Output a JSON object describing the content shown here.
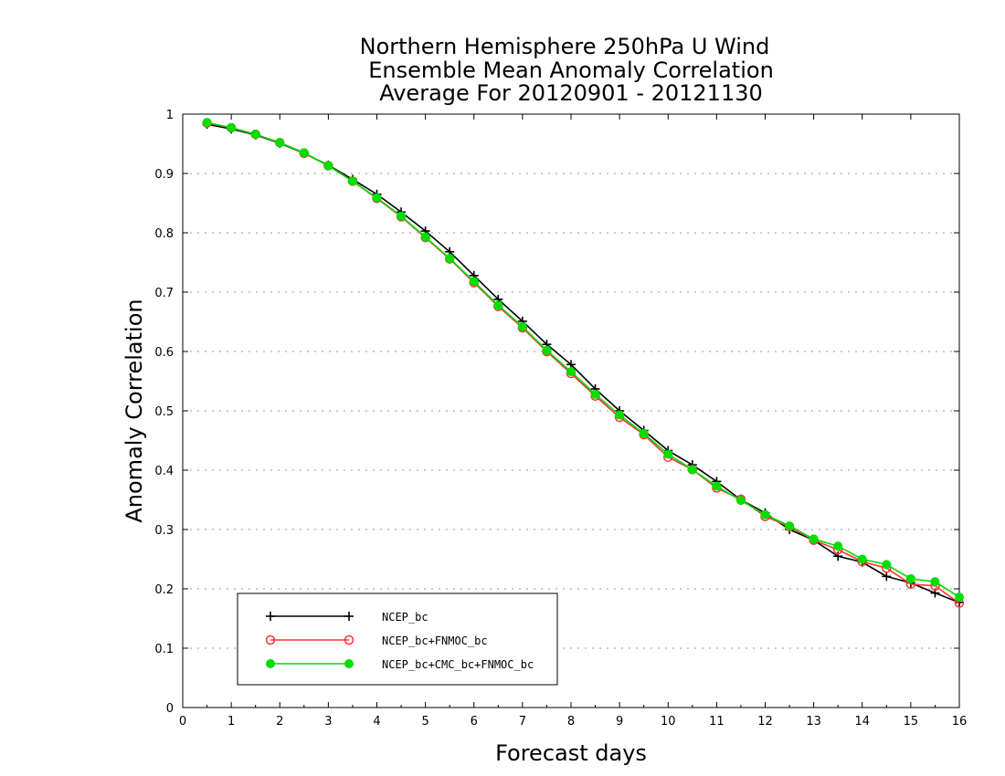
{
  "chart_data": {
    "type": "line",
    "title": [
      "Northern Hemisphere 250hPa U Wind",
      "Ensemble Mean Anomaly Correlation",
      "Average For 20120901 - 20121130"
    ],
    "xlabel": "Forecast days",
    "ylabel": "Anomaly Correlation",
    "xlim": [
      0,
      16
    ],
    "ylim": [
      0,
      1
    ],
    "x_ticks": [
      "0",
      "1",
      "2",
      "3",
      "4",
      "5",
      "6",
      "7",
      "8",
      "9",
      "10",
      "11",
      "12",
      "13",
      "14",
      "15",
      "16"
    ],
    "y_ticks": [
      "0",
      "0.1",
      "0.2",
      "0.3",
      "0.4",
      "0.5",
      "0.6",
      "0.7",
      "0.8",
      "0.9",
      "1"
    ],
    "grid": "horizontal dotted",
    "legend_position": "bottom-left",
    "x": [
      0.5,
      1,
      1.5,
      2,
      2.5,
      3,
      3.5,
      4,
      4.5,
      5,
      5.5,
      6,
      6.5,
      7,
      7.5,
      8,
      8.5,
      9,
      9.5,
      10,
      10.5,
      11,
      11.5,
      12,
      12.5,
      13,
      13.5,
      14,
      14.5,
      15,
      15.5,
      16
    ],
    "series": [
      {
        "name": "NCEP_bc",
        "color": "#000000",
        "marker": "plus",
        "values": [
          0.983,
          0.975,
          0.965,
          0.951,
          0.934,
          0.914,
          0.89,
          0.865,
          0.835,
          0.803,
          0.768,
          0.728,
          0.688,
          0.651,
          0.612,
          0.578,
          0.537,
          0.5,
          0.467,
          0.433,
          0.409,
          0.381,
          0.35,
          0.328,
          0.3,
          0.282,
          0.255,
          0.245,
          0.221,
          0.21,
          0.193,
          0.177
        ]
      },
      {
        "name": "NCEP_bc+FNMOC_bc",
        "color": "#ff3333",
        "marker": "open-circle",
        "values": [
          0.985,
          0.977,
          0.966,
          0.952,
          0.934,
          0.913,
          0.887,
          0.858,
          0.827,
          0.792,
          0.756,
          0.716,
          0.676,
          0.64,
          0.6,
          0.563,
          0.525,
          0.489,
          0.46,
          0.422,
          0.401,
          0.37,
          0.351,
          0.322,
          0.305,
          0.282,
          0.266,
          0.246,
          0.235,
          0.208,
          0.205,
          0.176
        ]
      },
      {
        "name": "NCEP_bc+CMC_bc+FNMOC_bc",
        "color": "#00dd00",
        "marker": "filled-circle",
        "values": [
          0.986,
          0.977,
          0.966,
          0.952,
          0.935,
          0.913,
          0.887,
          0.859,
          0.828,
          0.793,
          0.757,
          0.718,
          0.678,
          0.642,
          0.602,
          0.566,
          0.528,
          0.493,
          0.462,
          0.427,
          0.401,
          0.373,
          0.349,
          0.325,
          0.306,
          0.284,
          0.272,
          0.25,
          0.241,
          0.217,
          0.212,
          0.186
        ]
      }
    ]
  }
}
